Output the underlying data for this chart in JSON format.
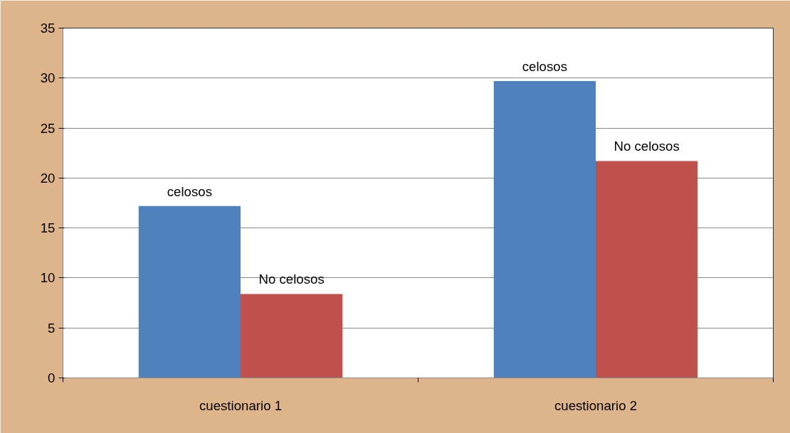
{
  "chart_data": {
    "type": "bar",
    "categories": [
      "cuestionario 1",
      "cuestionario 2"
    ],
    "series": [
      {
        "name": "celosos",
        "color": "#4f81bd",
        "values": [
          17.2,
          29.7
        ]
      },
      {
        "name": "No celosos",
        "color": "#c0504d",
        "values": [
          8.4,
          21.7
        ]
      }
    ],
    "ylim": [
      0,
      35
    ],
    "yticks": [
      0,
      5,
      10,
      15,
      20,
      25,
      30,
      35
    ],
    "grid": "y"
  }
}
